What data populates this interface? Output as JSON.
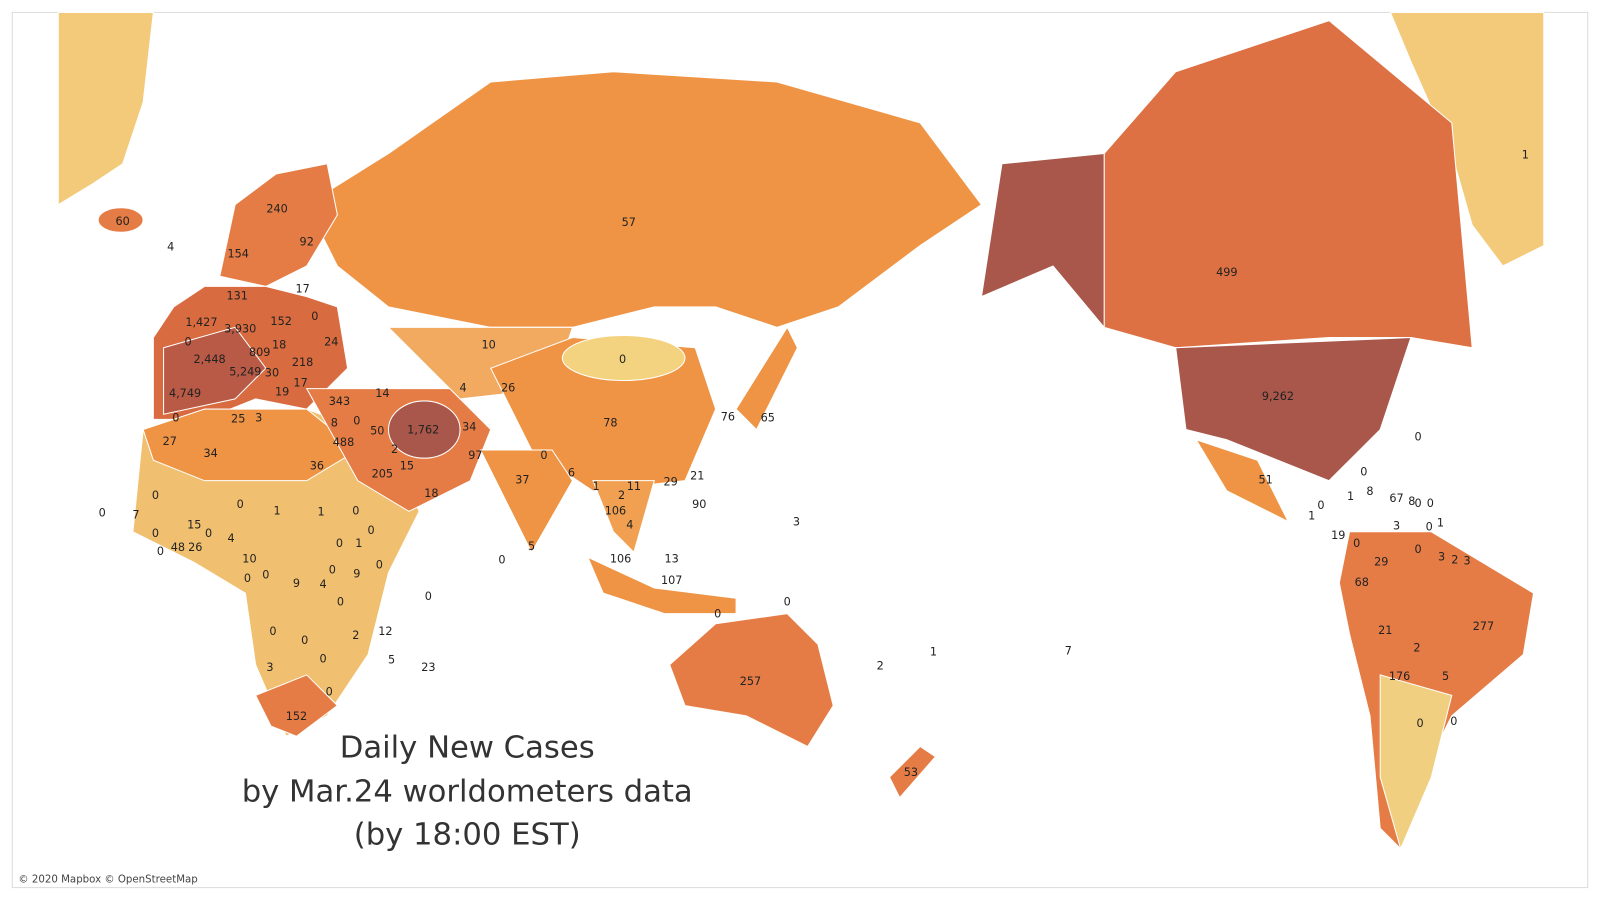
{
  "map": {
    "title_lines": [
      "Daily New Cases",
      "by Mar.24 worldometers data",
      "(by 18:00 EST)"
    ],
    "attribution": "© 2020 Mapbox © OpenStreetMap",
    "labels": [
      "60",
      "4",
      "240",
      "92",
      "154",
      "131",
      "17",
      "0",
      "1,427",
      "0",
      "3,930",
      "152",
      "18",
      "24",
      "2,448",
      "809",
      "218",
      "5,249",
      "30",
      "17",
      "19",
      "4,749",
      "343",
      "14",
      "8",
      "0",
      "50",
      "1,762",
      "34",
      "0",
      "25",
      "3",
      "27",
      "34",
      "488",
      "2",
      "15",
      "97",
      "36",
      "205",
      "18",
      "10",
      "4",
      "26",
      "0",
      "57",
      "78",
      "0",
      "37",
      "6",
      "1",
      "11",
      "2",
      "29",
      "21",
      "106",
      "4",
      "90",
      "76",
      "65",
      "3",
      "5",
      "0",
      "106",
      "13",
      "107",
      "0",
      "0",
      "257",
      "2",
      "1",
      "7",
      "53",
      "0",
      "7",
      "0",
      "0",
      "1",
      "1",
      "0",
      "15",
      "0",
      "0",
      "4",
      "0",
      "48",
      "26",
      "0",
      "1",
      "10",
      "0",
      "0",
      "0",
      "9",
      "4",
      "0",
      "9",
      "0",
      "0",
      "0",
      "0",
      "0",
      "2",
      "12",
      "0",
      "3",
      "5",
      "23",
      "0",
      "152",
      "499",
      "9,262",
      "0",
      "51",
      "0",
      "8",
      "1",
      "67",
      "8",
      "0",
      "0",
      "0",
      "1",
      "3",
      "0",
      "1",
      "19",
      "0",
      "0",
      "29",
      "3",
      "2",
      "3",
      "68",
      "277",
      "21",
      "2",
      "176",
      "5",
      "0",
      "0",
      "1"
    ]
  }
}
